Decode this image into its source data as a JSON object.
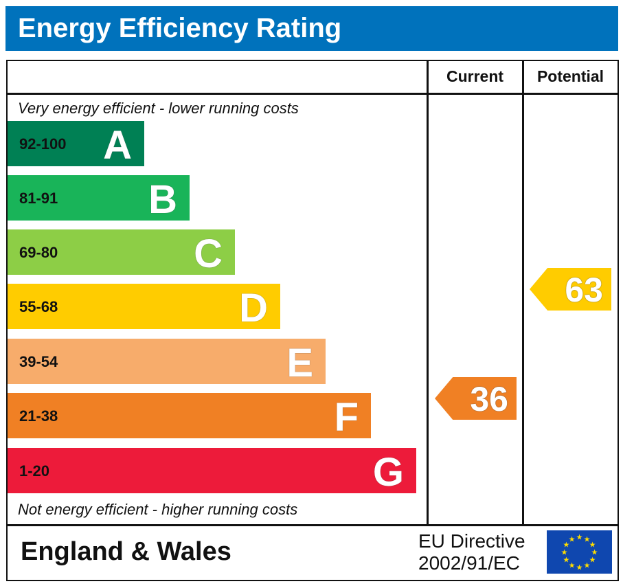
{
  "title": "Energy Efficiency Rating",
  "columns": {
    "current": "Current",
    "potential": "Potential"
  },
  "notes": {
    "top": "Very energy efficient - lower running costs",
    "bottom": "Not energy efficient - higher running costs"
  },
  "chart_data": {
    "type": "bar",
    "title": "Energy Efficiency Rating",
    "categories": [
      "A",
      "B",
      "C",
      "D",
      "E",
      "F",
      "G"
    ],
    "bands": [
      {
        "letter": "A",
        "range": "92-100",
        "color": "#008054"
      },
      {
        "letter": "B",
        "range": "81-91",
        "color": "#19b459"
      },
      {
        "letter": "C",
        "range": "69-80",
        "color": "#8dce46"
      },
      {
        "letter": "D",
        "range": "55-68",
        "color": "#ffcc00"
      },
      {
        "letter": "E",
        "range": "39-54",
        "color": "#f7ac6b"
      },
      {
        "letter": "F",
        "range": "21-38",
        "color": "#f08024"
      },
      {
        "letter": "G",
        "range": "1-20",
        "color": "#ed1b3a"
      }
    ],
    "current": {
      "value": "36",
      "band": "F",
      "color": "#f08024"
    },
    "potential": {
      "value": "63",
      "band": "D",
      "color": "#ffcc00"
    }
  },
  "footer": {
    "region": "England & Wales",
    "directive_line1": "EU Directive",
    "directive_line2": "2002/91/EC"
  },
  "flag": {
    "icon": "eu-flag-icon",
    "color": "#0f47af",
    "star_color": "#ffdd00"
  }
}
